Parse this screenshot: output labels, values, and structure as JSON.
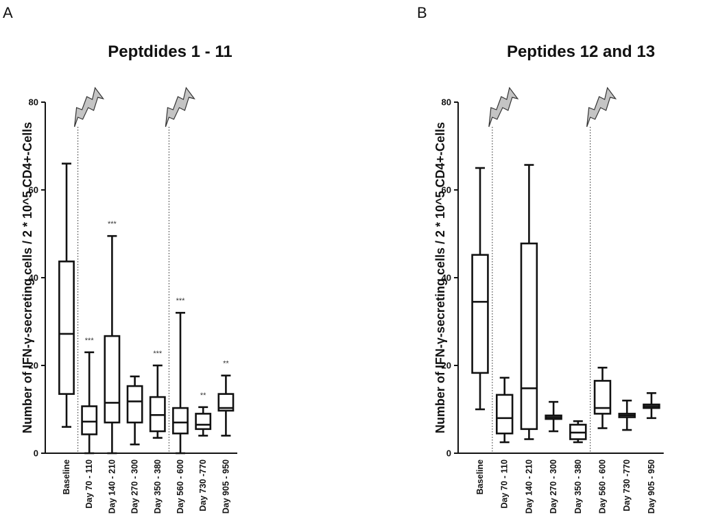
{
  "chart_data": [
    {
      "type": "box",
      "panel": "A",
      "title": "Peptdides 1 - 11",
      "ylabel": "Number of IFN-γ-secreting cells / 2 * 10^5 CD4+-Cells",
      "xlabel": "",
      "ylim": [
        0,
        80
      ],
      "yticks": [
        0,
        20,
        40,
        60,
        80
      ],
      "categories": [
        "Baseline",
        "Day 70 - 110",
        "Day 140 - 210",
        "Day 270 - 300",
        "Day 350 - 380",
        "Day 560 - 600",
        "Day 730 -770",
        "Day 905 - 950"
      ],
      "boxes": [
        {
          "min": 6,
          "q1": 13.5,
          "median": 27.2,
          "q3": 43.7,
          "max": 66,
          "sig": ""
        },
        {
          "min": 0,
          "q1": 4.3,
          "median": 7.2,
          "q3": 10.7,
          "max": 23,
          "sig": "***"
        },
        {
          "min": 0,
          "q1": 7,
          "median": 11.5,
          "q3": 26.7,
          "max": 49.5,
          "sig": "***"
        },
        {
          "min": 2,
          "q1": 7,
          "median": 11.8,
          "q3": 15.3,
          "max": 17.5,
          "sig": ""
        },
        {
          "min": 3.5,
          "q1": 5,
          "median": 8.7,
          "q3": 12.8,
          "max": 20,
          "sig": "***"
        },
        {
          "min": 0,
          "q1": 4.5,
          "median": 7,
          "q3": 10.3,
          "max": 32,
          "sig": "***"
        },
        {
          "min": 4,
          "q1": 5.5,
          "median": 6.5,
          "q3": 9,
          "max": 10.5,
          "sig": "**"
        },
        {
          "min": 4,
          "q1": 9.7,
          "median": 10.3,
          "q3": 13.5,
          "max": 17.7,
          "sig": "**"
        }
      ],
      "vaccination_markers_after_index": [
        0,
        4
      ]
    },
    {
      "type": "box",
      "panel": "B",
      "title": "Peptides 12 and 13",
      "ylabel": "Number of IFN-γ-secreting cells / 2 * 10^5 CD4+-Cells",
      "xlabel": "",
      "ylim": [
        0,
        80
      ],
      "yticks": [
        0,
        20,
        40,
        60,
        80
      ],
      "categories": [
        "Baseline",
        "Day 70 - 110",
        "Day 140 - 210",
        "Day 270 - 300",
        "Day 350 - 380",
        "Day 560 - 600",
        "Day 730 -770",
        "Day 905 - 950"
      ],
      "boxes": [
        {
          "min": 10,
          "q1": 18.3,
          "median": 34.5,
          "q3": 45.2,
          "max": 65,
          "sig": ""
        },
        {
          "min": 2.5,
          "q1": 4.5,
          "median": 8,
          "q3": 13.3,
          "max": 17.2,
          "sig": ""
        },
        {
          "min": 3.2,
          "q1": 5.5,
          "median": 14.8,
          "q3": 47.8,
          "max": 65.7,
          "sig": ""
        },
        {
          "min": 5,
          "q1": 7.8,
          "median": 8.2,
          "q3": 8.6,
          "max": 11.7,
          "sig": ""
        },
        {
          "min": 2.5,
          "q1": 3.2,
          "median": 4.7,
          "q3": 6.5,
          "max": 7.3,
          "sig": ""
        },
        {
          "min": 5.7,
          "q1": 9,
          "median": 10.3,
          "q3": 16.5,
          "max": 19.5,
          "sig": ""
        },
        {
          "min": 5.3,
          "q1": 8.2,
          "median": 8.6,
          "q3": 9,
          "max": 12,
          "sig": ""
        },
        {
          "min": 8,
          "q1": 10.3,
          "median": 10.7,
          "q3": 11.1,
          "max": 13.7,
          "sig": ""
        }
      ],
      "vaccination_markers_after_index": [
        0,
        4
      ]
    }
  ]
}
